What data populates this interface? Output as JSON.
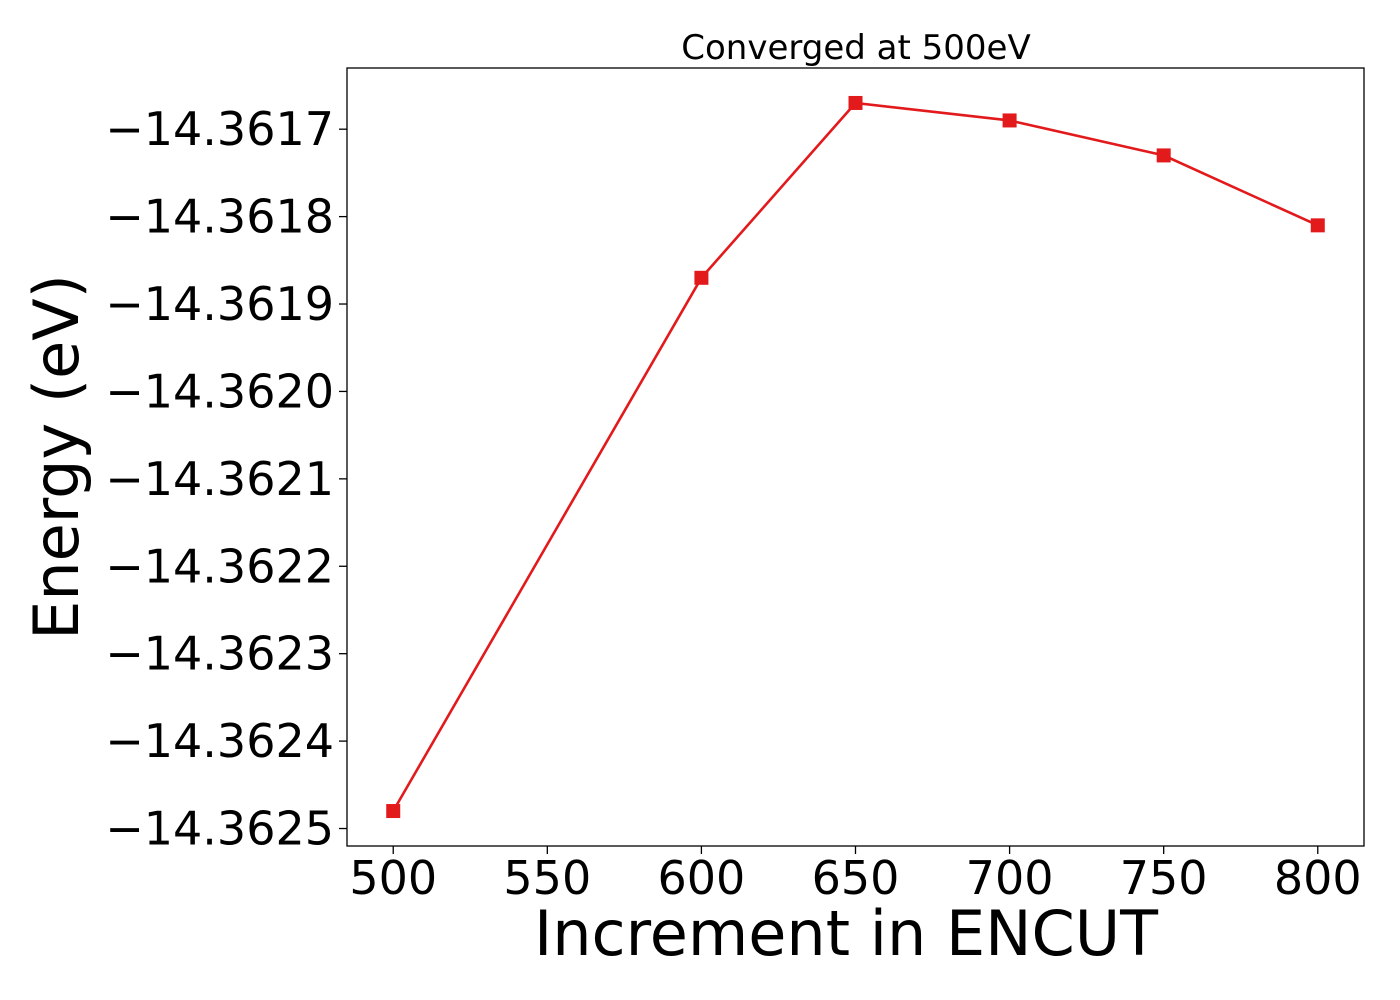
{
  "chart_data": {
    "type": "line",
    "title": "Converged at 500eV",
    "xlabel": "Increment in ENCUT",
    "ylabel": "Energy (eV)",
    "x": [
      500,
      600,
      650,
      700,
      750,
      800
    ],
    "series": [
      {
        "name": "",
        "color": "#e31a1c",
        "marker": "square",
        "values": [
          -14.36248,
          -14.36187,
          -14.36167,
          -14.36169,
          -14.36173,
          -14.36181
        ]
      }
    ],
    "xlim": [
      485,
      815
    ],
    "ylim": [
      -14.36252,
      -14.36163
    ],
    "xticks": [
      500,
      550,
      600,
      650,
      700,
      750,
      800
    ],
    "xtick_labels": [
      "500",
      "550",
      "600",
      "650",
      "700",
      "750",
      "800"
    ],
    "yticks": [
      -14.3617,
      -14.3618,
      -14.3619,
      -14.362,
      -14.3621,
      -14.3622,
      -14.3623,
      -14.3624,
      -14.3625
    ],
    "ytick_labels": [
      "−14.3617",
      "−14.3618",
      "−14.3619",
      "−14.3620",
      "−14.3621",
      "−14.3622",
      "−14.3623",
      "−14.3624",
      "−14.3625"
    ],
    "grid": false,
    "legend": "none"
  }
}
